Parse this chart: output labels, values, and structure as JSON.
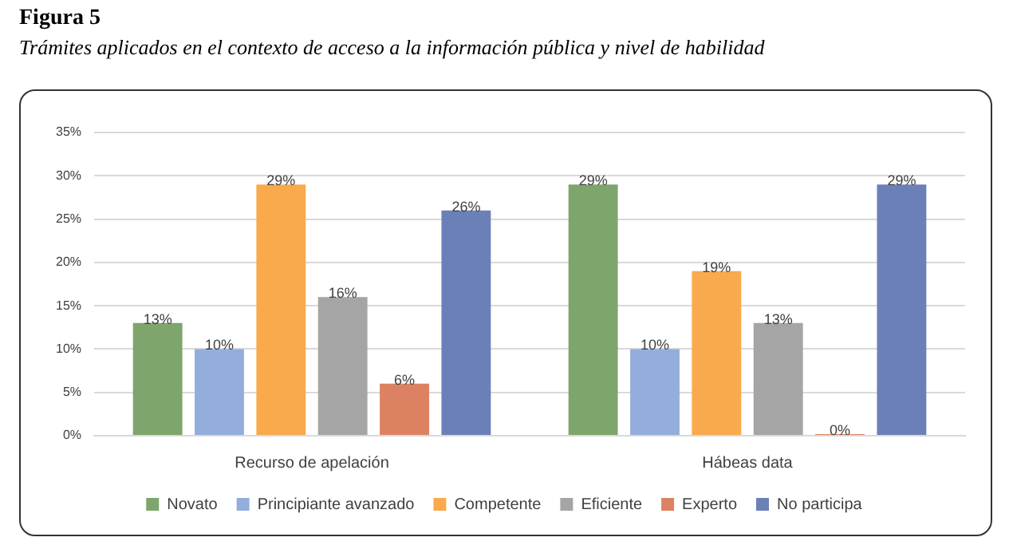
{
  "chart_data": {
    "type": "bar",
    "title": "Figura 5",
    "subtitle": "Trámites aplicados en el contexto de acceso a la información pública y nivel de habilidad",
    "categories": [
      "Recurso de apelación",
      "Hábeas data"
    ],
    "series": [
      {
        "name": "Novato",
        "color": "#7ea56c",
        "values": [
          13,
          29
        ],
        "value_labels": [
          "13%",
          "29%"
        ]
      },
      {
        "name": "Principiante avanzado",
        "color": "#93aedc",
        "values": [
          10,
          10
        ],
        "value_labels": [
          "10%",
          "10%"
        ]
      },
      {
        "name": "Competente",
        "color": "#f8aa4c",
        "values": [
          29,
          19
        ],
        "value_labels": [
          "29%",
          "19%"
        ]
      },
      {
        "name": "Eficiente",
        "color": "#a5a5a5",
        "values": [
          16,
          13
        ],
        "value_labels": [
          "16%",
          "13%"
        ]
      },
      {
        "name": "Experto",
        "color": "#dc8263",
        "values": [
          6,
          0
        ],
        "value_labels": [
          "6%",
          "0%"
        ]
      },
      {
        "name": "No participa",
        "color": "#6c80b8",
        "values": [
          26,
          29
        ],
        "value_labels": [
          "26%",
          "29%"
        ]
      }
    ],
    "ylim": [
      0,
      35
    ],
    "yticks": [
      {
        "value": 0,
        "label": "0%"
      },
      {
        "value": 5,
        "label": "5%"
      },
      {
        "value": 10,
        "label": "10%"
      },
      {
        "value": 15,
        "label": "15%"
      },
      {
        "value": 20,
        "label": "20%"
      },
      {
        "value": 25,
        "label": "25%"
      },
      {
        "value": 30,
        "label": "30%"
      },
      {
        "value": 35,
        "label": "35%"
      }
    ],
    "grid": "y",
    "legend": "bottom"
  }
}
